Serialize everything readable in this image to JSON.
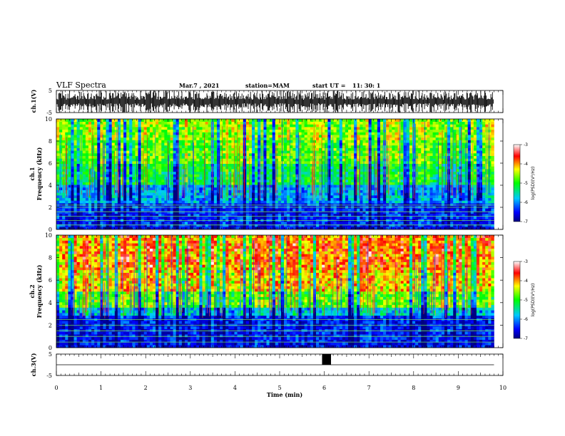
{
  "header": {
    "title": "VLF Spectra",
    "date": "Mar.7 , 2021",
    "station": "station=MAM",
    "start": "start UT =",
    "start_time": "11: 30: 1"
  },
  "chart_data": [
    {
      "type": "line",
      "panel": "ch1-waveform",
      "ylabel": "ch.1(V)",
      "ylim": [
        -5,
        5
      ],
      "yticks": [
        "5",
        "-5"
      ]
    },
    {
      "type": "heatmap",
      "panel": "ch1-spectrogram",
      "ylabel_line1": "ch.1",
      "ylabel_line2": "Frequency (kHz)",
      "ylim": [
        0,
        10
      ],
      "yticks": [
        "0",
        "2",
        "4",
        "6",
        "8",
        "10"
      ],
      "colorbar": {
        "label": "log(PSD)(V²/Hz)",
        "ticks": [
          "-3",
          "-4",
          "-5",
          "-6",
          "-7"
        ],
        "range": [
          -7,
          -3
        ]
      },
      "band_levels": [
        {
          "freq_khz": [
            8.0,
            10.0
          ],
          "log_psd": -4.6
        },
        {
          "freq_khz": [
            6.0,
            8.0
          ],
          "log_psd": -4.8
        },
        {
          "freq_khz": [
            4.0,
            6.0
          ],
          "log_psd": -5.2
        },
        {
          "freq_khz": [
            2.5,
            4.0
          ],
          "log_psd": -5.9
        },
        {
          "freq_khz": [
            0.3,
            2.5
          ],
          "log_psd": -6.4
        },
        {
          "freq_khz": [
            0.0,
            0.3
          ],
          "log_psd": -6.6
        }
      ],
      "tone_lines_khz": [
        0.4,
        0.8,
        1.2,
        1.6,
        2.0,
        2.2
      ]
    },
    {
      "type": "heatmap",
      "panel": "ch2-spectrogram",
      "ylabel_line1": "ch.2",
      "ylabel_line2": "Frequency (kHz)",
      "ylim": [
        0,
        10
      ],
      "yticks": [
        "0",
        "2",
        "4",
        "6",
        "8",
        "10"
      ],
      "colorbar": {
        "label": "log(PSD)(V²/Hz)",
        "ticks": [
          "-3",
          "-4",
          "-5",
          "-6",
          "-7"
        ],
        "range": [
          -7,
          -3
        ]
      },
      "band_levels": [
        {
          "freq_khz": [
            7.0,
            10.0
          ],
          "log_psd": -4.2
        },
        {
          "freq_khz": [
            5.0,
            7.0
          ],
          "log_psd": -4.5
        },
        {
          "freq_khz": [
            3.5,
            5.0
          ],
          "log_psd": -5.1
        },
        {
          "freq_khz": [
            2.8,
            3.5
          ],
          "log_psd": -5.8
        },
        {
          "freq_khz": [
            0.0,
            2.8
          ],
          "log_psd": -6.5
        }
      ],
      "tone_lines_khz": [
        0.5,
        1.0,
        1.5,
        2.0,
        2.5
      ]
    },
    {
      "type": "line",
      "panel": "ch3-waveform",
      "ylabel": "ch.3(V)",
      "ylim": [
        -5,
        5
      ],
      "yticks": [
        "5",
        "-5"
      ],
      "baseline_v": 0,
      "pulse": {
        "x_min": [
          5.95,
          6.15
        ],
        "y_v": [
          0,
          5
        ]
      }
    }
  ],
  "xaxis": {
    "label": "Time (min)",
    "xlim": [
      0,
      10
    ],
    "ticks": [
      "0",
      "1",
      "2",
      "3",
      "4",
      "5",
      "6",
      "7",
      "8",
      "9",
      "10"
    ],
    "data_end_min": 9.8
  }
}
